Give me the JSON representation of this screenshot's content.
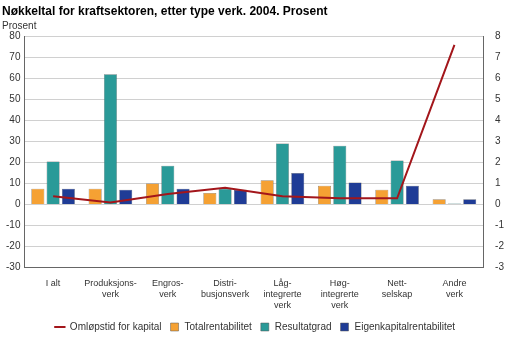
{
  "chart_data": {
    "type": "bar",
    "title": "Nøkkeltal for kraftsektoren, etter type verk. 2004. Prosent",
    "ylabel": "Prosent",
    "categories": [
      [
        "I alt"
      ],
      [
        "Produksjons-",
        "verk"
      ],
      [
        "Engros-",
        "verk"
      ],
      [
        "Distri-",
        "busjonsverk"
      ],
      [
        "Låg-",
        "integrerte",
        "verk"
      ],
      [
        "Høg-",
        "integrerte",
        "verk"
      ],
      [
        "Nett-",
        "selskap"
      ],
      [
        "Andre",
        "verk"
      ]
    ],
    "series": [
      {
        "name": "Totalrentabilitet",
        "color": "#f5a133",
        "values": [
          7.5,
          7.5,
          10,
          5.5,
          11.5,
          9,
          7,
          2.5
        ]
      },
      {
        "name": "Resultatgrad",
        "color": "#2a9a98",
        "values": [
          20.5,
          62,
          18.5,
          7.5,
          29,
          28,
          21,
          0.5
        ]
      },
      {
        "name": "Eigenkapitalrentabilitet",
        "color": "#1f3c96",
        "values": [
          7.5,
          7,
          7.5,
          7,
          15,
          10.5,
          9,
          2.5
        ]
      },
      {
        "name": "Omløpstid for kapital",
        "color": "#a3161b",
        "type": "line",
        "axis": "y2",
        "values": [
          0.4,
          0.1,
          0.5,
          0.8,
          0.4,
          0.3,
          0.3,
          7.6
        ]
      }
    ],
    "ylim": [
      -30,
      80
    ],
    "yticks": [
      -30,
      -20,
      -10,
      0,
      10,
      20,
      30,
      40,
      50,
      60,
      70,
      80
    ],
    "y2lim": [
      -3,
      8
    ],
    "y2ticks": [
      -3,
      -2,
      -1,
      0,
      1,
      2,
      3,
      4,
      5,
      6,
      7,
      8
    ],
    "grid": true,
    "legend": "bottom"
  }
}
